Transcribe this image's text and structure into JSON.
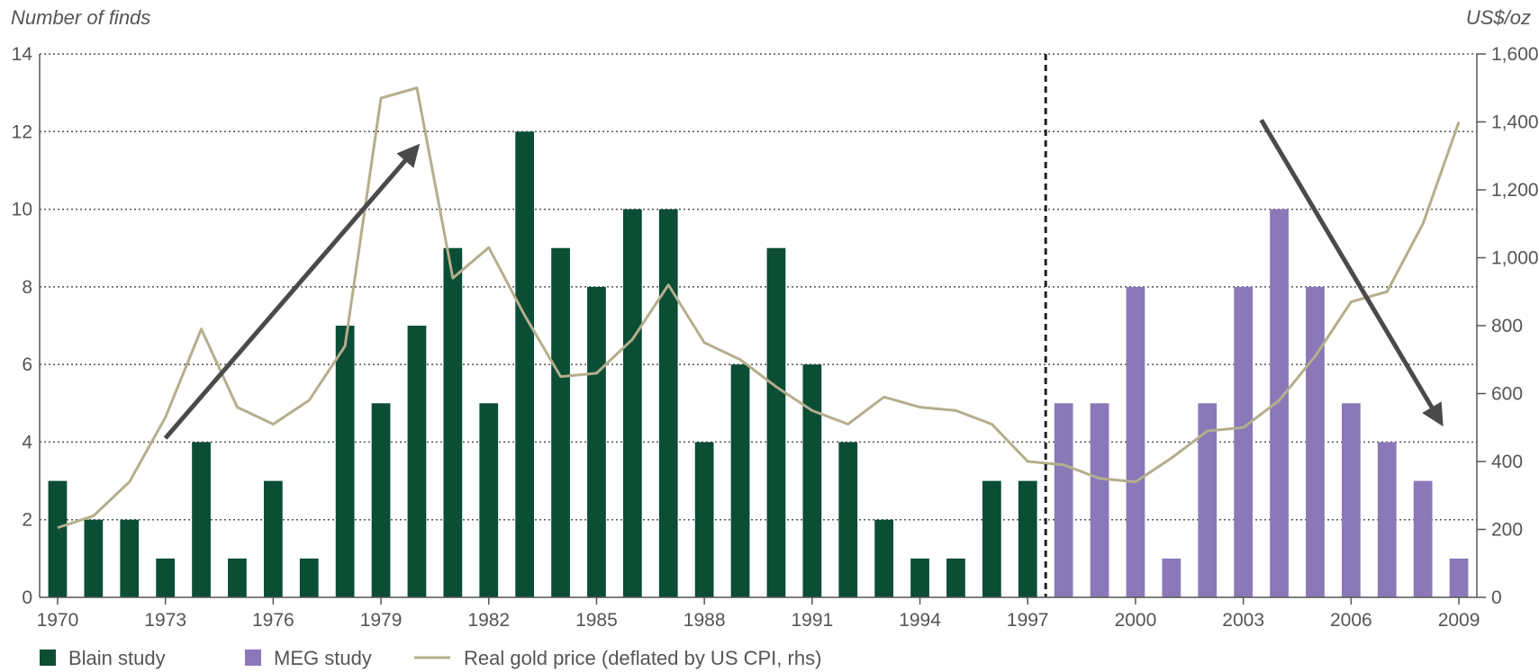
{
  "chart_data": {
    "type": "bar",
    "y_left_label": "Number of finds",
    "y_right_label": "US$/oz",
    "ylim_left": [
      0,
      14
    ],
    "ylim_right": [
      0,
      1600
    ],
    "y_left_ticks": [
      "0",
      "2",
      "4",
      "6",
      "8",
      "10",
      "12",
      "14"
    ],
    "y_right_ticks": [
      "0",
      "200",
      "400",
      "600",
      "800",
      "1,000",
      "1,200",
      "1,400",
      "1,600"
    ],
    "x_tick_labels": [
      "1970",
      "1973",
      "1976",
      "1979",
      "1982",
      "1985",
      "1988",
      "1991",
      "1994",
      "1997",
      "2000",
      "2003",
      "2006",
      "2009"
    ],
    "grid": "horizontal dotted",
    "legend_position": "bottom",
    "series": [
      {
        "name": "Blain study",
        "type": "bar",
        "color": "#0b4d35",
        "x": [
          1970,
          1971,
          1972,
          1973,
          1974,
          1975,
          1976,
          1977,
          1978,
          1979,
          1980,
          1981,
          1982,
          1983,
          1984,
          1985,
          1986,
          1987,
          1988,
          1989,
          1990,
          1991,
          1992,
          1993,
          1994,
          1995,
          1996,
          1997
        ],
        "values": [
          3,
          2,
          2,
          1,
          4,
          1,
          3,
          1,
          7,
          5,
          7,
          9,
          5,
          12,
          9,
          8,
          10,
          10,
          4,
          6,
          9,
          6,
          4,
          2,
          1,
          1,
          3,
          3
        ]
      },
      {
        "name": "MEG study",
        "type": "bar",
        "color": "#8b78b8",
        "x": [
          1998,
          1999,
          2000,
          2001,
          2002,
          2003,
          2004,
          2005,
          2006,
          2007,
          2008,
          2009
        ],
        "values": [
          5,
          5,
          8,
          1,
          5,
          8,
          10,
          8,
          5,
          4,
          3,
          1
        ]
      },
      {
        "name": "Real gold price (deflated by US CPI, rhs)",
        "type": "line",
        "axis": "right",
        "color": "#b5ae8c",
        "x": [
          1970,
          1971,
          1972,
          1973,
          1974,
          1975,
          1976,
          1977,
          1978,
          1979,
          1980,
          1981,
          1982,
          1983,
          1984,
          1985,
          1986,
          1987,
          1988,
          1989,
          1990,
          1991,
          1992,
          1993,
          1994,
          1995,
          1996,
          1997,
          1998,
          1999,
          2000,
          2001,
          2002,
          2003,
          2004,
          2005,
          2006,
          2007,
          2008,
          2009
        ],
        "values": [
          205,
          240,
          340,
          530,
          790,
          560,
          510,
          580,
          740,
          1470,
          1500,
          940,
          1030,
          830,
          650,
          660,
          760,
          920,
          750,
          700,
          620,
          550,
          510,
          590,
          560,
          550,
          510,
          400,
          390,
          350,
          340,
          410,
          490,
          500,
          580,
          710,
          870,
          900,
          1100,
          1400
        ]
      }
    ],
    "annotations": [
      {
        "type": "arrow",
        "from": [
          1973,
          4.1
        ],
        "to": [
          1980,
          11.6
        ],
        "color": "#4a4a4a"
      },
      {
        "type": "arrow",
        "from": [
          2003.5,
          12.3
        ],
        "to": [
          2008.5,
          4.5
        ],
        "color": "#4a4a4a"
      },
      {
        "type": "dashed-vertical-line",
        "x": 1997.5,
        "color": "#222222"
      }
    ]
  }
}
